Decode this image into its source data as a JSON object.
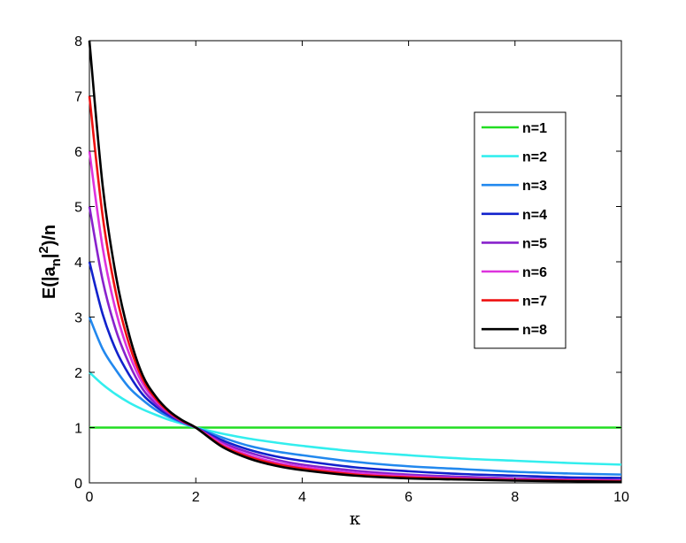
{
  "chart_data": {
    "type": "line",
    "title": "",
    "xlabel": "κ",
    "ylabel_parts": {
      "pre": "E(|a",
      "sub": "n",
      "mid": "|",
      "sup": "2",
      "post": ")/n"
    },
    "xlim": [
      0,
      10
    ],
    "ylim": [
      0,
      8
    ],
    "xticks": [
      0,
      2,
      4,
      6,
      8,
      10
    ],
    "yticks": [
      0,
      1,
      2,
      3,
      4,
      5,
      6,
      7,
      8
    ],
    "grid": false,
    "legend_position": "top-right",
    "x": [
      0,
      0.25,
      0.5,
      0.75,
      1,
      1.25,
      1.5,
      1.75,
      2,
      2.5,
      3,
      3.5,
      4,
      5,
      6,
      7,
      8,
      9,
      10
    ],
    "series": [
      {
        "name": "n=1",
        "color": "#22dd22",
        "values": [
          1,
          1,
          1,
          1,
          1,
          1,
          1,
          1,
          1,
          1,
          1,
          1,
          1,
          1,
          1,
          1,
          1,
          1,
          1
        ]
      },
      {
        "name": "n=2",
        "color": "#33eeee",
        "values": [
          2,
          1.78,
          1.6,
          1.45,
          1.33,
          1.23,
          1.14,
          1.07,
          1,
          0.89,
          0.8,
          0.73,
          0.67,
          0.57,
          0.5,
          0.44,
          0.4,
          0.36,
          0.33
        ]
      },
      {
        "name": "n=3",
        "color": "#2288ee",
        "values": [
          3,
          2.42,
          2.04,
          1.72,
          1.5,
          1.32,
          1.19,
          1.09,
          1,
          0.82,
          0.67,
          0.57,
          0.5,
          0.38,
          0.3,
          0.25,
          0.2,
          0.17,
          0.15
        ]
      },
      {
        "name": "n=4",
        "color": "#1122cc",
        "values": [
          4,
          3.05,
          2.4,
          1.95,
          1.6,
          1.38,
          1.22,
          1.1,
          1,
          0.77,
          0.6,
          0.48,
          0.4,
          0.28,
          0.21,
          0.16,
          0.13,
          0.1,
          0.09
        ]
      },
      {
        "name": "n=5",
        "color": "#8822cc",
        "values": [
          5,
          3.66,
          2.76,
          2.15,
          1.7,
          1.43,
          1.25,
          1.1,
          1,
          0.73,
          0.55,
          0.42,
          0.33,
          0.22,
          0.15,
          0.11,
          0.08,
          0.06,
          0.05
        ]
      },
      {
        "name": "n=6",
        "color": "#dd33dd",
        "values": [
          6,
          4.25,
          3.1,
          2.33,
          1.8,
          1.48,
          1.27,
          1.12,
          1,
          0.7,
          0.5,
          0.37,
          0.29,
          0.18,
          0.12,
          0.08,
          0.06,
          0.05,
          0.04
        ]
      },
      {
        "name": "n=7",
        "color": "#ee1111",
        "values": [
          7,
          4.82,
          3.43,
          2.5,
          1.88,
          1.52,
          1.28,
          1.12,
          1,
          0.67,
          0.47,
          0.34,
          0.26,
          0.15,
          0.1,
          0.07,
          0.05,
          0.04,
          0.03
        ]
      },
      {
        "name": "n=8",
        "color": "#000000",
        "values": [
          8,
          5.37,
          3.74,
          2.67,
          1.95,
          1.56,
          1.3,
          1.13,
          1,
          0.65,
          0.44,
          0.31,
          0.23,
          0.13,
          0.08,
          0.06,
          0.04,
          0.03,
          0.02
        ]
      }
    ]
  }
}
